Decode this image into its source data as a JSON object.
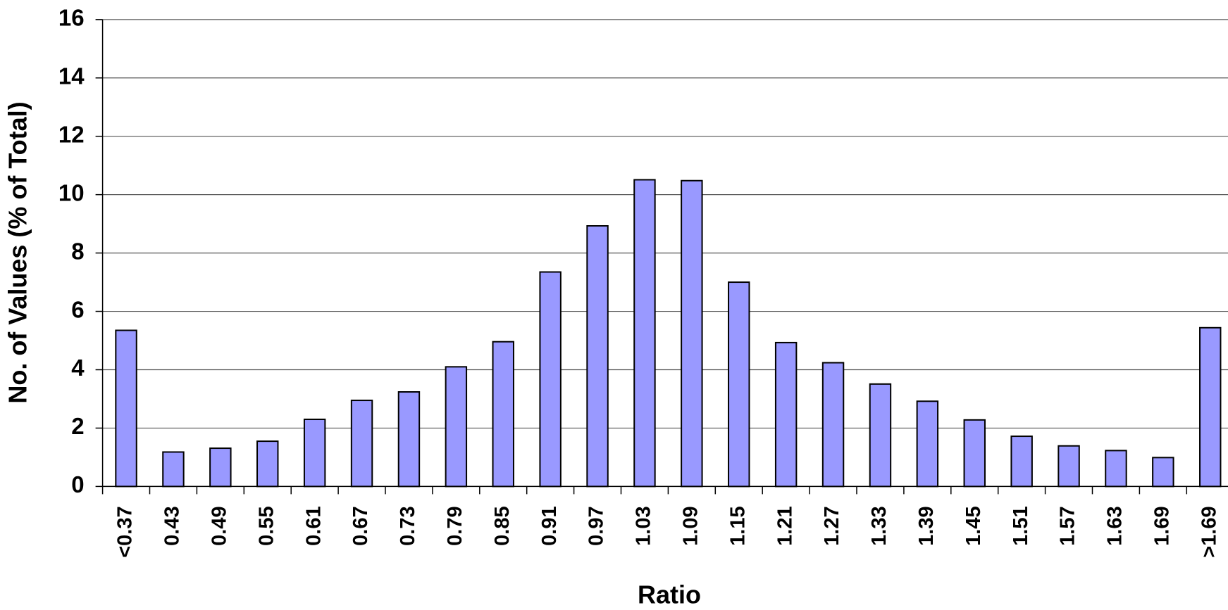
{
  "chart_data": {
    "type": "bar",
    "xlabel": "Ratio",
    "ylabel": "No. of Values (% of Total)",
    "categories": [
      "<0.37",
      "0.43",
      "0.49",
      "0.55",
      "0.61",
      "0.67",
      "0.73",
      "0.79",
      "0.85",
      "0.91",
      "0.97",
      "1.03",
      "1.09",
      "1.15",
      "1.21",
      "1.27",
      "1.33",
      "1.39",
      "1.45",
      "1.51",
      "1.57",
      "1.63",
      "1.69",
      ">1.69"
    ],
    "values": [
      5.35,
      1.18,
      1.31,
      1.55,
      2.3,
      2.95,
      3.24,
      4.1,
      4.96,
      7.35,
      8.93,
      10.51,
      10.48,
      7.0,
      4.93,
      4.24,
      3.51,
      2.92,
      2.28,
      1.72,
      1.39,
      1.23,
      0.99,
      5.44
    ],
    "color": "#9999ff",
    "ylim": [
      0,
      16
    ],
    "yticks": [
      0,
      2,
      4,
      6,
      8,
      10,
      12,
      14,
      16
    ],
    "grid": true
  }
}
